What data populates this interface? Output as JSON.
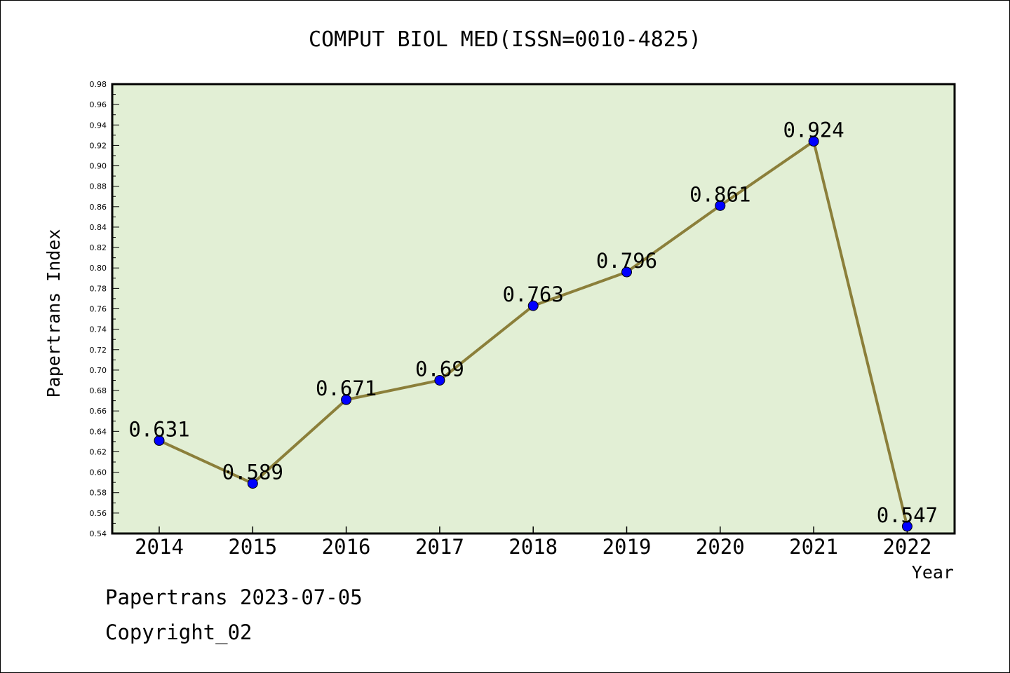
{
  "chart_data": {
    "type": "line",
    "title": "COMPUT BIOL MED(ISSN=0010-4825)",
    "xlabel": "Year",
    "ylabel": "Papertrans Index",
    "categories": [
      "2014",
      "2015",
      "2016",
      "2017",
      "2018",
      "2019",
      "2020",
      "2021",
      "2022"
    ],
    "series": [
      {
        "values": [
          0.631,
          0.589,
          0.671,
          0.69,
          0.763,
          0.796,
          0.861,
          0.924,
          0.547
        ]
      }
    ],
    "data_labels": [
      "0.631",
      "0.589",
      "0.671",
      "0.69",
      "0.763",
      "0.796",
      "0.861",
      "0.924",
      "0.547"
    ],
    "ylim": [
      0.54,
      0.98
    ],
    "yticks": [
      "0.54",
      "0.56",
      "0.58",
      "0.60",
      "0.62",
      "0.64",
      "0.66",
      "0.68",
      "0.70",
      "0.72",
      "0.74",
      "0.76",
      "0.78",
      "0.80",
      "0.82",
      "0.84",
      "0.86",
      "0.88",
      "0.90",
      "0.92",
      "0.94",
      "0.96",
      "0.98"
    ],
    "grid": false,
    "colors": {
      "plot_background": "#e2efd5",
      "line": "#8b7f3a",
      "marker": "#0000ff"
    }
  },
  "footer": {
    "date_line": "Papertrans 2023-07-05",
    "copyright": "Copyright_02"
  }
}
